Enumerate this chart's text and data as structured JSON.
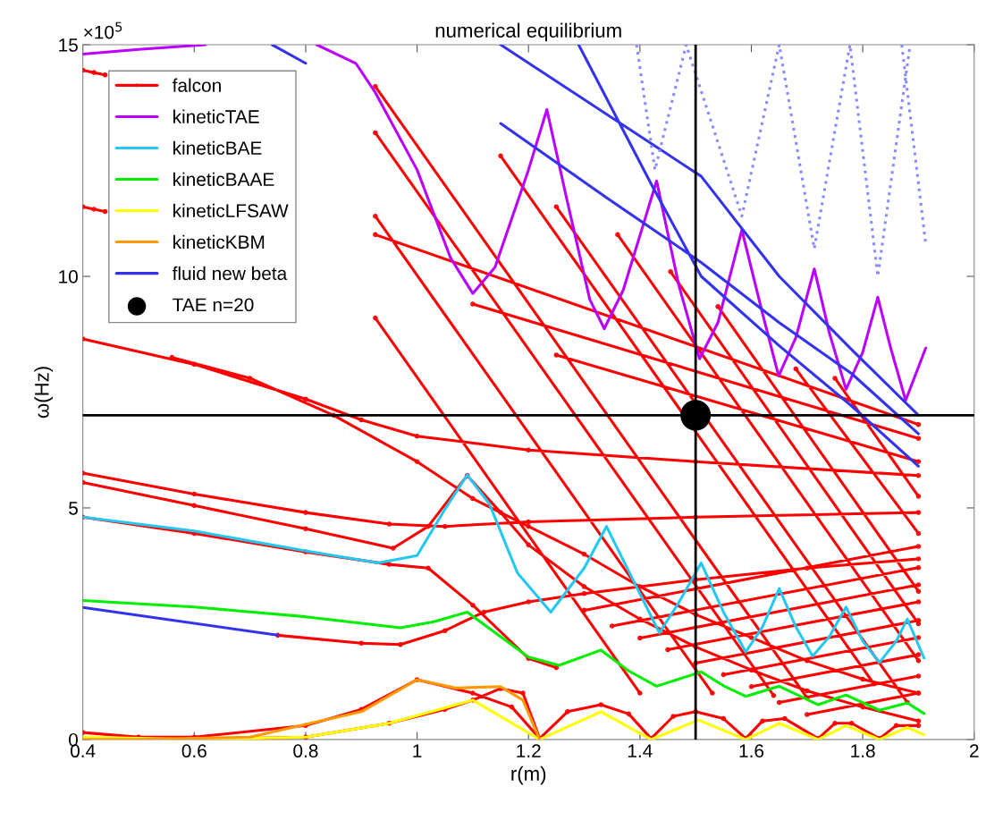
{
  "chart_data": {
    "type": "line",
    "title": "numerical equilibrium",
    "xlabel": "r(m)",
    "ylabel": "ω(Hz)",
    "annotations": [
      "×10$^{5}$"
    ],
    "xlim": [
      0.4,
      2
    ],
    "ylim": [
      0,
      15
    ],
    "xticks": [
      0.4,
      0.6,
      0.8,
      1,
      1.2,
      1.4,
      1.6,
      1.8,
      2
    ],
    "yticks": [
      0,
      5,
      10,
      15
    ],
    "grid": false,
    "legend": "top left",
    "line_style": "solid",
    "marker": "none",
    "ref_lines": [
      {
        "axis": "y",
        "value": 7,
        "color": "#000000"
      },
      {
        "axis": "x",
        "value": 1.5,
        "color": "#000000"
      }
    ],
    "series": [
      {
        "name": "falcon",
        "color": "#ff0000",
        "marker": "circle",
        "x": [
          0.4,
          0.42,
          0.44,
          null,
          0.4,
          0.42,
          0.44,
          null,
          0.4,
          0.6,
          0.8,
          0.9,
          1.0,
          1.2,
          1.5,
          1.9,
          null,
          0.56,
          0.7,
          0.85,
          1.0,
          1.1,
          1.2,
          1.3,
          1.4,
          1.5,
          1.6,
          1.7,
          1.8,
          1.9,
          null,
          0.4,
          0.6,
          0.8,
          0.95,
          1.05,
          1.2,
          1.5,
          1.9,
          null,
          0.4,
          0.6,
          0.8,
          0.957,
          1.02,
          1.09,
          1.15,
          1.2,
          1.3,
          1.4,
          1.5,
          1.6,
          1.7,
          1.8,
          1.9,
          null,
          0.4,
          0.6,
          0.8,
          0.95,
          1.02,
          1.1,
          1.2,
          1.25,
          null,
          0.75,
          0.9,
          0.97,
          1.05,
          1.12,
          1.2,
          1.3,
          1.5,
          1.7,
          1.9,
          null,
          0.4,
          0.5,
          0.6,
          0.8,
          0.9,
          1.0,
          1.1,
          1.17,
          1.22,
          null,
          0.6,
          0.8,
          0.95,
          1.05,
          1.1,
          1.15,
          1.19,
          1.22,
          null,
          1.22,
          1.27,
          1.33,
          1.38,
          1.42,
          1.46,
          1.5,
          1.55,
          1.59,
          1.62,
          1.66,
          1.72,
          1.75,
          1.78,
          1.83,
          1.86,
          1.9,
          null,
          0.925,
          1.7,
          null,
          0.925,
          1.64,
          null,
          0.925,
          1.53,
          null,
          0.925,
          1.4,
          null,
          1.15,
          1.82,
          null,
          1.25,
          1.88,
          null,
          1.36,
          1.9,
          null,
          1.455,
          1.9,
          null,
          1.54,
          1.9,
          null,
          1.68,
          1.9,
          null,
          1.75,
          1.9,
          null,
          0.925,
          1.9,
          null,
          1.1,
          1.9,
          null,
          1.25,
          1.9,
          null,
          1.3,
          1.9,
          null,
          1.35,
          1.9,
          null,
          1.4,
          1.9,
          null,
          1.45,
          1.9,
          null,
          1.5,
          1.9,
          null,
          1.55,
          1.9,
          null,
          1.6,
          1.9,
          null,
          1.65,
          1.9,
          null,
          1.7,
          1.9
        ],
        "values": [
          14.45,
          14.4,
          14.35,
          null,
          11.5,
          11.45,
          11.4,
          null,
          8.65,
          8.1,
          7.35,
          6.9,
          6.55,
          6.25,
          6.0,
          5.7,
          null,
          8.25,
          7.8,
          7.0,
          6.0,
          5.2,
          4.6,
          4.0,
          3.3,
          2.7,
          2.2,
          1.7,
          1.3,
          1.0,
          null,
          5.75,
          5.3,
          4.9,
          4.65,
          4.6,
          4.7,
          4.8,
          4.9,
          null,
          5.55,
          5.05,
          4.55,
          4.13,
          4.6,
          5.7,
          4.9,
          4.2,
          3.3,
          2.6,
          2.0,
          1.5,
          1.05,
          0.7,
          0.4,
          null,
          4.8,
          4.45,
          4.05,
          3.78,
          3.7,
          2.9,
          1.75,
          1.55,
          null,
          2.25,
          2.08,
          2.05,
          2.35,
          2.75,
          2.97,
          3.15,
          3.45,
          3.7,
          3.9,
          null,
          0.15,
          0.05,
          0.05,
          0.3,
          0.65,
          1.29,
          1.0,
          0.7,
          0.02,
          null,
          0.0,
          0.05,
          0.35,
          0.65,
          0.85,
          1.1,
          1.0,
          0.02,
          null,
          0.02,
          0.6,
          0.75,
          0.55,
          0.02,
          0.5,
          0.6,
          0.45,
          0.02,
          0.4,
          0.45,
          0.02,
          0.35,
          0.35,
          0.02,
          0.3,
          0.3,
          null,
          14.1,
          0.9,
          null,
          13.1,
          0.95,
          null,
          11.3,
          1.0,
          null,
          9.1,
          1.0,
          null,
          12.6,
          1.2,
          null,
          11.5,
          0.8,
          null,
          10.9,
          1.7,
          null,
          10.1,
          2.5,
          null,
          9.35,
          3.2,
          null,
          8.0,
          4.45,
          null,
          7.8,
          5.25,
          null,
          10.9,
          6.8,
          null,
          9.4,
          6.5,
          null,
          8.3,
          6.0,
          null,
          2.79,
          4.17,
          null,
          2.45,
          3.71,
          null,
          2.19,
          3.34,
          null,
          1.94,
          2.97,
          null,
          1.65,
          2.57,
          null,
          1.4,
          2.2,
          null,
          1.14,
          1.83,
          null,
          0.8,
          1.37,
          null,
          0.54,
          1.0
        ]
      },
      {
        "name": "kineticTAE",
        "color": "#bb00ff",
        "x": [
          0.4,
          0.5,
          0.62,
          null,
          0.82,
          0.89,
          0.925,
          1.0,
          1.06,
          1.1,
          1.14,
          1.2,
          1.233,
          1.27,
          1.31,
          1.336,
          1.37,
          1.43,
          1.47,
          1.507,
          1.54,
          1.583,
          1.62,
          1.649,
          1.68,
          1.713,
          1.74,
          1.77,
          1.8,
          1.827,
          1.85,
          1.877,
          1.913
        ],
        "values": [
          14.8,
          14.9,
          15.0,
          null,
          15.0,
          14.6,
          13.97,
          12.3,
          10.4,
          9.63,
          10.2,
          12.3,
          13.6,
          11.6,
          9.5,
          8.87,
          9.7,
          12.06,
          9.8,
          8.22,
          9.0,
          11.0,
          9.2,
          7.85,
          8.68,
          10.16,
          8.78,
          7.56,
          8.36,
          9.55,
          8.46,
          7.32,
          8.45
        ]
      },
      {
        "name": "kineticBAE",
        "color": "#22c8f0",
        "x": [
          0.4,
          0.6,
          0.8,
          0.93,
          1.0,
          1.05,
          1.09,
          1.13,
          1.18,
          1.24,
          1.3,
          1.34,
          1.39,
          1.435,
          1.47,
          1.51,
          1.55,
          1.59,
          1.62,
          1.65,
          1.68,
          1.71,
          1.74,
          1.77,
          1.8,
          1.83,
          1.86,
          1.88,
          1.91
        ],
        "values": [
          4.8,
          4.5,
          4.07,
          3.81,
          3.97,
          4.97,
          5.71,
          5.08,
          3.6,
          2.75,
          3.7,
          4.6,
          3.39,
          2.3,
          2.96,
          3.81,
          2.75,
          1.89,
          2.43,
          3.26,
          2.43,
          1.8,
          2.22,
          2.86,
          2.12,
          1.66,
          2.12,
          2.6,
          1.76
        ]
      },
      {
        "name": "kineticBAAE",
        "color": "#00ee00",
        "x": [
          0.4,
          0.6,
          0.8,
          0.97,
          1.03,
          1.09,
          1.15,
          1.2,
          1.255,
          1.33,
          1.38,
          1.43,
          1.51,
          1.55,
          1.59,
          1.65,
          1.72,
          1.77,
          1.83,
          1.88,
          1.91
        ],
        "values": [
          3.0,
          2.86,
          2.65,
          2.41,
          2.54,
          2.75,
          2.22,
          1.78,
          1.6,
          1.93,
          1.48,
          1.15,
          1.46,
          1.16,
          0.93,
          1.15,
          0.75,
          0.96,
          0.63,
          0.79,
          0.56
        ]
      },
      {
        "name": "kineticLFSAW",
        "color": "#ffff00",
        "x": [
          0.4,
          0.6,
          0.8,
          0.95,
          1.1,
          1.22,
          1.33,
          1.42,
          1.505,
          1.59,
          1.65,
          1.72,
          1.77,
          1.83,
          1.88,
          1.91
        ],
        "values": [
          0.05,
          0.0,
          0.05,
          0.35,
          0.85,
          0.0,
          0.6,
          0.0,
          0.42,
          0.0,
          0.35,
          0.0,
          0.3,
          0.0,
          0.26,
          0.1
        ]
      },
      {
        "name": "kineticKBM",
        "color": "#ff9900",
        "x": [
          0.4,
          0.5,
          0.7,
          0.9,
          1.0,
          1.07,
          1.15,
          1.19,
          1.22
        ],
        "values": [
          0.0,
          0.0,
          0.05,
          0.6,
          1.29,
          1.11,
          1.14,
          0.85,
          0.0
        ]
      },
      {
        "name": "fluid new beta",
        "color": "#3333ee",
        "x": [
          0.4,
          0.75,
          null,
          0.74,
          0.8,
          null,
          1.15,
          1.51,
          1.65,
          1.78,
          1.9,
          null,
          1.15,
          1.34,
          1.51,
          1.65,
          1.78,
          1.9,
          null,
          1.29,
          1.42,
          1.51,
          1.65,
          1.78,
          1.9
        ],
        "values": [
          2.85,
          2.25,
          null,
          15.0,
          14.6,
          null,
          15.0,
          12.16,
          10.0,
          8.42,
          7.0,
          null,
          13.3,
          11.7,
          10.3,
          9.0,
          7.9,
          6.6,
          null,
          15.0,
          12.0,
          10.0,
          8.5,
          7.2,
          5.9
        ]
      },
      {
        "color": "#8888ff",
        "line_style": "dotted",
        "x": [
          1.394,
          1.427,
          1.483,
          1.583,
          1.65,
          1.713,
          1.777,
          1.827,
          1.885,
          null,
          1.87,
          1.913
        ],
        "values": [
          15.0,
          12.3,
          15.0,
          11.3,
          15.0,
          10.6,
          15.0,
          10.0,
          15.0,
          null,
          15.0,
          10.7
        ]
      },
      {
        "name": "TAE n=20",
        "color": "#000000",
        "type": "scatter",
        "marker": "circle",
        "x": [
          1.5
        ],
        "values": [
          7
        ]
      }
    ]
  }
}
